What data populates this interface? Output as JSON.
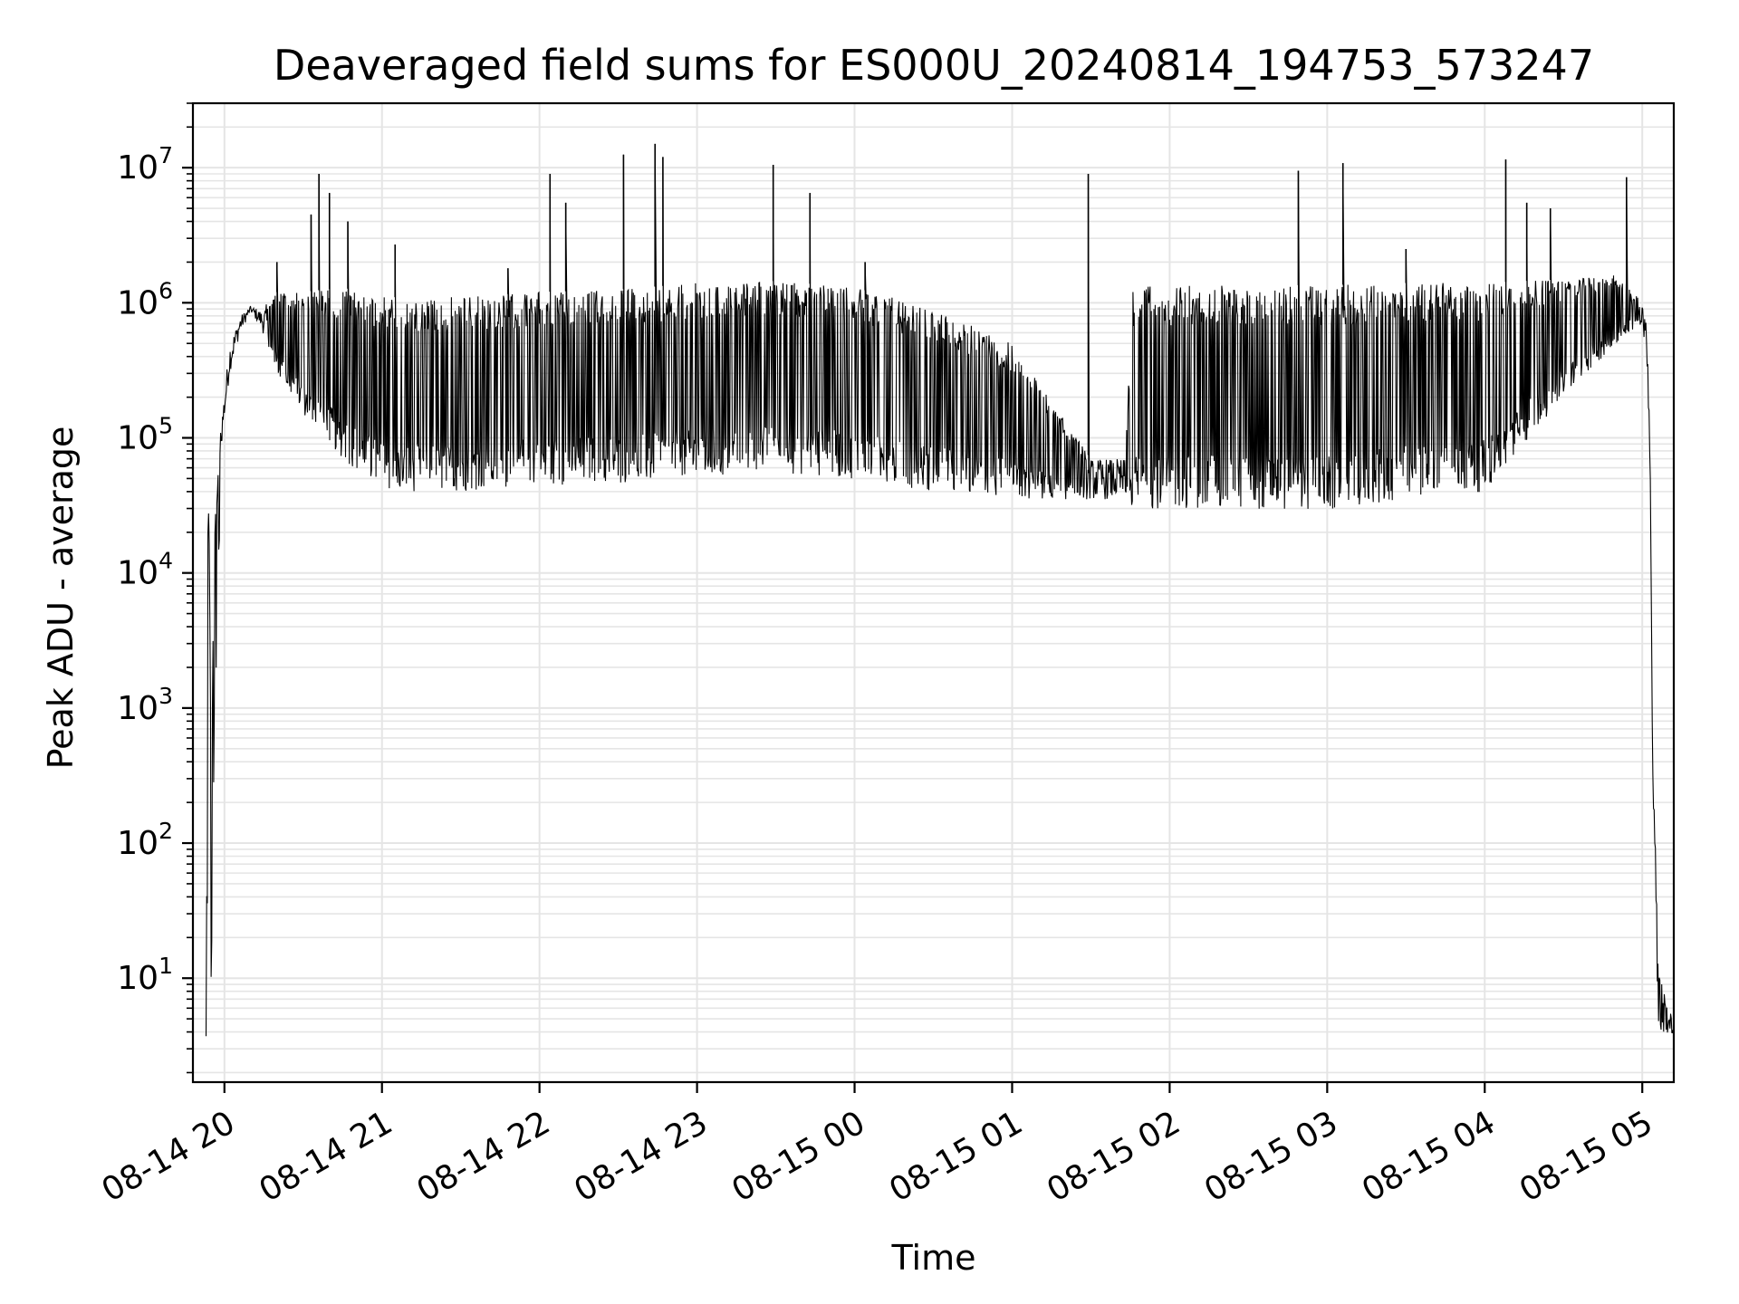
{
  "chart_data": {
    "type": "line",
    "title": "Deaveraged field sums for ES000U_20240814_194753_573247",
    "xlabel": "Time",
    "ylabel": "Peak ADU - average",
    "yscale": "log",
    "ylim": [
      1.7,
      30000000
    ],
    "xlim": [
      "2024-08-14 19:48",
      "2024-08-15 05:12"
    ],
    "grid": true,
    "line_color": "#000000",
    "grid_color": "#e5e5e5",
    "x_ticks": [
      {
        "t": "2024-08-14 20:00",
        "label": "08-14 20"
      },
      {
        "t": "2024-08-14 21:00",
        "label": "08-14 21"
      },
      {
        "t": "2024-08-14 22:00",
        "label": "08-14 22"
      },
      {
        "t": "2024-08-14 23:00",
        "label": "08-14 23"
      },
      {
        "t": "2024-08-15 00:00",
        "label": "08-15 00"
      },
      {
        "t": "2024-08-15 01:00",
        "label": "08-15 01"
      },
      {
        "t": "2024-08-15 02:00",
        "label": "08-15 02"
      },
      {
        "t": "2024-08-15 03:00",
        "label": "08-15 03"
      },
      {
        "t": "2024-08-15 04:00",
        "label": "08-15 04"
      },
      {
        "t": "2024-08-15 05:00",
        "label": "08-15 05"
      }
    ],
    "y_ticks": [
      {
        "value": 10,
        "base": "10",
        "exp": "1"
      },
      {
        "value": 100,
        "base": "10",
        "exp": "2"
      },
      {
        "value": 1000,
        "base": "10",
        "exp": "3"
      },
      {
        "value": 10000,
        "base": "10",
        "exp": "4"
      },
      {
        "value": 100000,
        "base": "10",
        "exp": "5"
      },
      {
        "value": 1000000,
        "base": "10",
        "exp": "6"
      },
      {
        "value": 10000000,
        "base": "10",
        "exp": "7"
      }
    ],
    "series": [
      {
        "envelope": [
          {
            "t": "2024-08-14 19:53",
            "lo": 1.7,
            "hi": 50000
          },
          {
            "t": "2024-08-14 19:54",
            "lo": 40,
            "hi": 90000
          },
          {
            "t": "2024-08-14 19:55",
            "lo": 3.8,
            "hi": 200
          },
          {
            "t": "2024-08-14 19:56",
            "lo": 300,
            "hi": 20000
          },
          {
            "t": "2024-08-14 19:59",
            "lo": 90000,
            "hi": 150000
          },
          {
            "t": "2024-08-14 20:02",
            "lo": 300000,
            "hi": 500000
          },
          {
            "t": "2024-08-14 20:06",
            "lo": 600000,
            "hi": 800000
          },
          {
            "t": "2024-08-14 20:10",
            "lo": 850000,
            "hi": 950000
          },
          {
            "t": "2024-08-14 20:14",
            "lo": 650000,
            "hi": 880000
          },
          {
            "t": "2024-08-14 20:20",
            "lo": 300000,
            "hi": 1200000
          },
          {
            "t": "2024-08-14 20:30",
            "lo": 150000,
            "hi": 1200000
          },
          {
            "t": "2024-08-14 20:45",
            "lo": 70000,
            "hi": 1300000
          },
          {
            "t": "2024-08-14 21:00",
            "lo": 40000,
            "hi": 1100000
          },
          {
            "t": "2024-08-14 21:30",
            "lo": 40000,
            "hi": 1100000
          },
          {
            "t": "2024-08-14 22:00",
            "lo": 45000,
            "hi": 1200000
          },
          {
            "t": "2024-08-14 22:30",
            "lo": 45000,
            "hi": 1250000
          },
          {
            "t": "2024-08-14 23:00",
            "lo": 50000,
            "hi": 1400000
          },
          {
            "t": "2024-08-14 23:30",
            "lo": 55000,
            "hi": 1450000
          },
          {
            "t": "2024-08-15 00:00",
            "lo": 50000,
            "hi": 1300000
          },
          {
            "t": "2024-08-15 00:30",
            "lo": 40000,
            "hi": 900000
          },
          {
            "t": "2024-08-15 01:00",
            "lo": 35000,
            "hi": 500000
          },
          {
            "t": "2024-08-15 01:30",
            "lo": 35000,
            "hi": 70000
          },
          {
            "t": "2024-08-15 01:43",
            "lo": 35000,
            "hi": 70000
          },
          {
            "t": "2024-08-15 01:46",
            "lo": 30000,
            "hi": 1300000
          },
          {
            "t": "2024-08-15 02:00",
            "lo": 30000,
            "hi": 1350000
          },
          {
            "t": "2024-08-15 02:30",
            "lo": 30000,
            "hi": 1350000
          },
          {
            "t": "2024-08-15 03:00",
            "lo": 28000,
            "hi": 1350000
          },
          {
            "t": "2024-08-15 03:30",
            "lo": 35000,
            "hi": 1400000
          },
          {
            "t": "2024-08-15 04:00",
            "lo": 40000,
            "hi": 1400000
          },
          {
            "t": "2024-08-15 04:30",
            "lo": 200000,
            "hi": 1500000
          },
          {
            "t": "2024-08-15 04:50",
            "lo": 500000,
            "hi": 1600000
          },
          {
            "t": "2024-08-15 05:00",
            "lo": 700000,
            "hi": 1100000
          },
          {
            "t": "2024-08-15 05:02",
            "lo": 300000,
            "hi": 600000
          },
          {
            "t": "2024-08-15 05:03",
            "lo": 50000,
            "hi": 100000
          },
          {
            "t": "2024-08-15 05:04",
            "lo": 250,
            "hi": 400
          },
          {
            "t": "2024-08-15 05:05",
            "lo": 50,
            "hi": 100
          },
          {
            "t": "2024-08-15 05:06",
            "lo": 4,
            "hi": 12
          },
          {
            "t": "2024-08-15 05:12",
            "lo": 3.8,
            "hi": 4.5
          }
        ],
        "spikes": [
          {
            "t": "2024-08-14 20:20",
            "value": 2000000
          },
          {
            "t": "2024-08-14 20:33",
            "value": 4500000
          },
          {
            "t": "2024-08-14 20:36",
            "value": 9000000
          },
          {
            "t": "2024-08-14 20:40",
            "value": 6500000
          },
          {
            "t": "2024-08-14 20:47",
            "value": 4000000
          },
          {
            "t": "2024-08-14 21:05",
            "value": 2700000
          },
          {
            "t": "2024-08-14 21:48",
            "value": 1800000
          },
          {
            "t": "2024-08-14 22:04",
            "value": 9000000
          },
          {
            "t": "2024-08-14 22:10",
            "value": 5500000
          },
          {
            "t": "2024-08-14 22:32",
            "value": 12500000
          },
          {
            "t": "2024-08-14 22:44",
            "value": 15000000
          },
          {
            "t": "2024-08-14 22:47",
            "value": 12000000
          },
          {
            "t": "2024-08-14 23:29",
            "value": 10500000
          },
          {
            "t": "2024-08-14 23:43",
            "value": 6500000
          },
          {
            "t": "2024-08-15 00:04",
            "value": 2000000
          },
          {
            "t": "2024-08-15 01:29",
            "value": 9000000
          },
          {
            "t": "2024-08-15 02:49",
            "value": 9500000
          },
          {
            "t": "2024-08-15 03:06",
            "value": 10800000
          },
          {
            "t": "2024-08-15 03:30",
            "value": 2500000
          },
          {
            "t": "2024-08-15 04:08",
            "value": 11500000
          },
          {
            "t": "2024-08-15 04:16",
            "value": 5500000
          },
          {
            "t": "2024-08-15 04:25",
            "value": 5000000
          },
          {
            "t": "2024-08-15 04:54",
            "value": 8500000
          }
        ]
      }
    ]
  }
}
